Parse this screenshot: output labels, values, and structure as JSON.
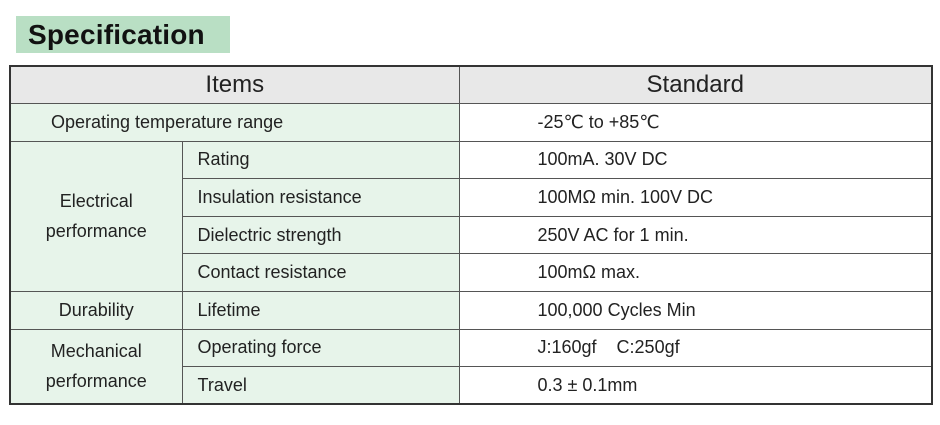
{
  "title": "Specification",
  "table": {
    "headers": {
      "items": "Items",
      "standard": "Standard"
    },
    "rows": {
      "temperature": {
        "item": "Operating temperature range",
        "standard": "-25℃  to +85℃"
      },
      "electrical": {
        "group_line1": "Electrical",
        "group_line2": "performance",
        "rating": {
          "item": "Rating",
          "standard": "100mA. 30V DC"
        },
        "insulation": {
          "item": "Insulation resistance",
          "standard": "100MΩ min. 100V DC"
        },
        "dielectric": {
          "item": "Dielectric strength",
          "standard": "250V AC for 1 min."
        },
        "contact": {
          "item": "Contact resistance",
          "standard": "100mΩ max."
        }
      },
      "durability": {
        "group": "Durability",
        "lifetime": {
          "item": "Lifetime",
          "standard": "100,000 Cycles Min"
        }
      },
      "mechanical": {
        "group_line1": "Mechanical",
        "group_line2": "performance",
        "force": {
          "item": "Operating force",
          "standard": "J:160gf    C:250gf"
        },
        "travel": {
          "item": "Travel",
          "standard": "0.3 ± 0.1mm"
        }
      }
    }
  }
}
